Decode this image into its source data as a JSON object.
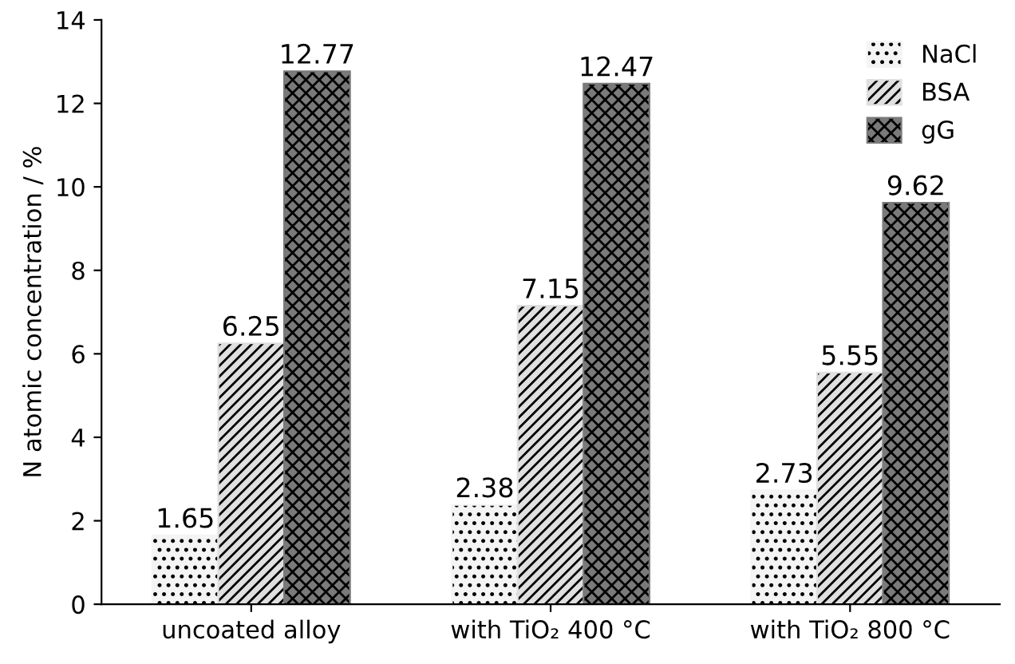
{
  "chart_data": {
    "type": "bar",
    "ylabel": "N atomic concentration / %",
    "categories": [
      "uncoated alloy",
      "with TiO₂ 400 °C",
      "with TiO₂ 800 °C"
    ],
    "series": [
      {
        "name": "NaCl",
        "color": "#f4f4f4",
        "values": [
          1.65,
          2.38,
          2.73
        ]
      },
      {
        "name": "BSA",
        "color": "#e0e0e0",
        "values": [
          6.25,
          7.15,
          5.55
        ]
      },
      {
        "name": "gG",
        "color": "#7a7a7a",
        "values": [
          12.77,
          12.47,
          9.62
        ]
      }
    ],
    "ylim": [
      0,
      14
    ],
    "yticks": [
      0,
      2,
      4,
      6,
      8,
      10,
      12,
      14
    ],
    "grid": false,
    "legend": "top right",
    "data_labels": true
  }
}
